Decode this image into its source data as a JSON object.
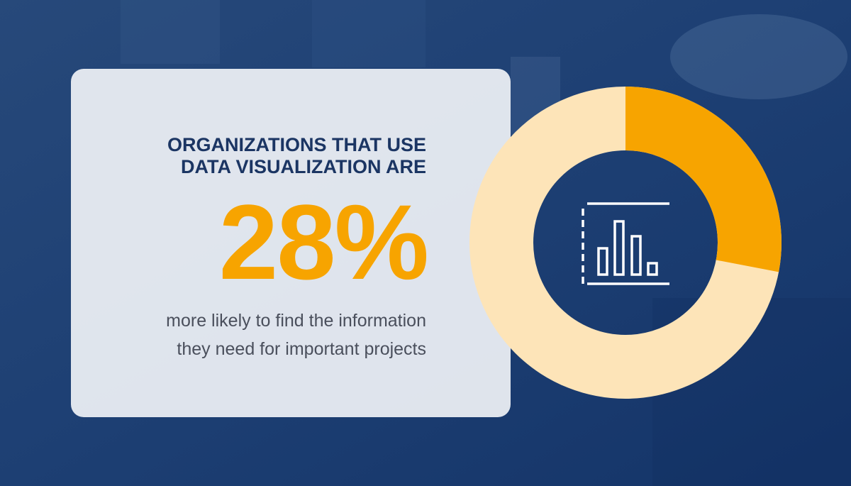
{
  "heading": [
    "ORGANIZATIONS THAT USE",
    "DATA VISUALIZATION ARE"
  ],
  "stat": {
    "value": 28,
    "label": "28%"
  },
  "description": [
    "more likely to find the information",
    "they need for important projects"
  ]
}
